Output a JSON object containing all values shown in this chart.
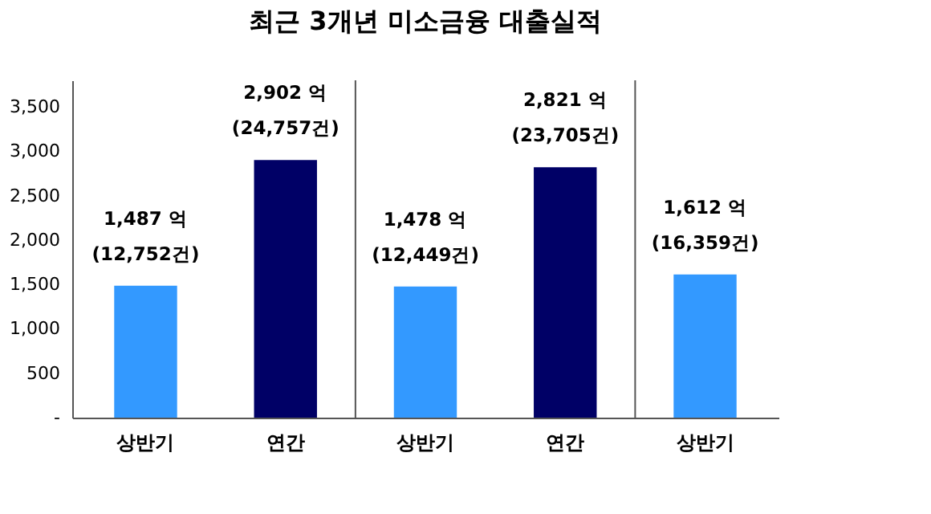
{
  "chart_data": {
    "type": "bar",
    "title": "최근 3개년 미소금융 대출실적",
    "categories": [
      "상반기",
      "연간",
      "상반기",
      "연간",
      "상반기"
    ],
    "values": [
      1487,
      2902,
      1478,
      2821,
      1612
    ],
    "colors": [
      "#3399ff",
      "#000066",
      "#3399ff",
      "#000066",
      "#3399ff"
    ],
    "value_labels": [
      "1,487 억\n(12,752건)",
      "2,902 억\n(24,757건)",
      "1,478 억\n(12,449건)",
      "2,821 억\n(23,705건)",
      "1,612 억\n(16,359건)"
    ],
    "ylim": [
      0,
      3800
    ],
    "yticks": [
      {
        "value": 0,
        "label": "-"
      },
      500,
      {
        "value": 1000,
        "label": "1,000"
      },
      {
        "value": 1500,
        "label": "1,500"
      },
      {
        "value": 2000,
        "label": "2,000"
      },
      {
        "value": 2500,
        "label": "2,500"
      },
      {
        "value": 3000,
        "label": "3,000"
      },
      {
        "value": 3500,
        "label": "3,500"
      }
    ],
    "grid": false,
    "legend": false
  }
}
